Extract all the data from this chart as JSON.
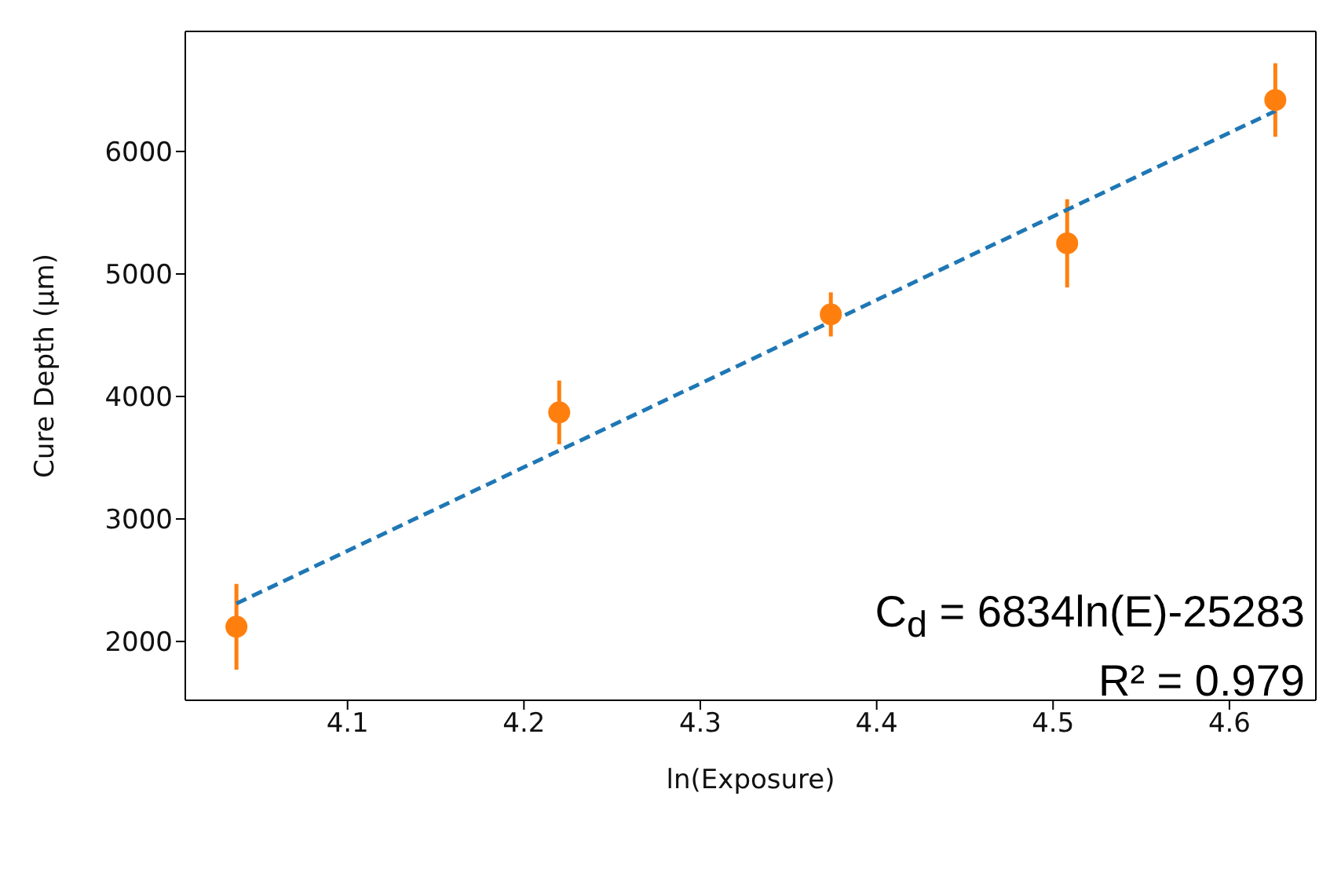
{
  "chart_data": {
    "type": "scatter",
    "xlabel": "ln(Exposure)",
    "ylabel": "Cure Depth (μm)",
    "xlim": [
      4.008,
      4.649
    ],
    "xticks": [
      4.1,
      4.2,
      4.3,
      4.4,
      4.5,
      4.6
    ],
    "ylim": [
      1520,
      6980
    ],
    "yticks": [
      2000,
      3000,
      4000,
      5000,
      6000
    ],
    "series": [
      {
        "type": "line",
        "color": "#1f77b4",
        "line_style": "dashed",
        "marker": "none",
        "x": [
          4.037,
          4.626
        ],
        "values": [
          2310,
          6330
        ]
      },
      {
        "color": "#ff7f0e",
        "marker": "circle",
        "x": [
          4.037,
          4.22,
          4.374,
          4.508,
          4.626
        ],
        "values": [
          2120,
          3870,
          4670,
          5250,
          6420
        ],
        "errors": [
          350,
          260,
          180,
          360,
          300
        ]
      }
    ],
    "annotations": [
      "C$_{d}$ = 6834ln(E)-25283",
      "R² = 0.979"
    ]
  }
}
